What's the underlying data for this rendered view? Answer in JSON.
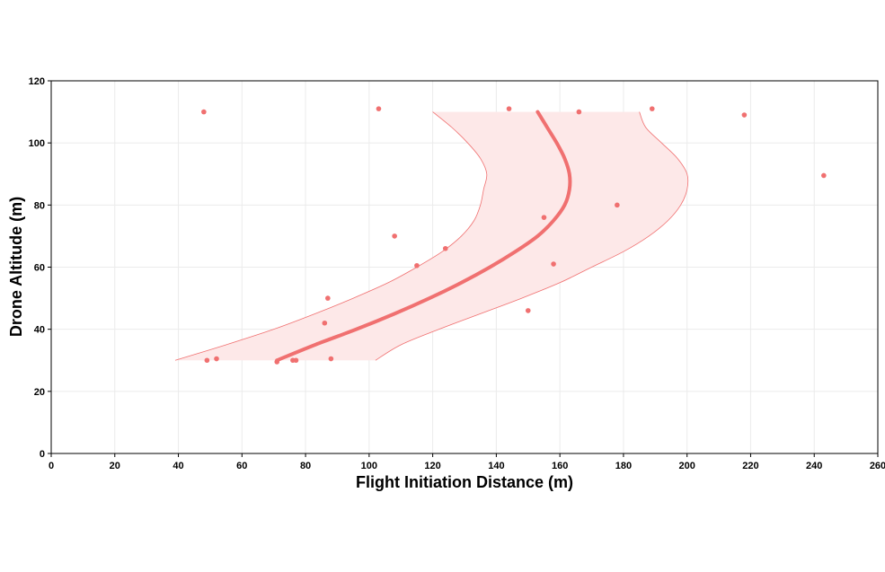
{
  "chart_data": {
    "type": "scatter",
    "xlabel": "Flight Initiation Distance (m)",
    "ylabel": "Drone Altitude (m)",
    "xlim": [
      0,
      260
    ],
    "ylim": [
      0,
      120
    ],
    "xticks": [
      0,
      20,
      40,
      60,
      80,
      100,
      120,
      140,
      160,
      180,
      200,
      220,
      240,
      260
    ],
    "yticks": [
      0,
      20,
      40,
      60,
      80,
      100,
      120
    ],
    "grid": true,
    "colors": {
      "points": "#f07070",
      "band_fill": "#fde8e8",
      "band_edge": "#f07070",
      "fit_line": "#f07070"
    },
    "points": [
      {
        "x": 48,
        "y": 110
      },
      {
        "x": 103,
        "y": 111
      },
      {
        "x": 144,
        "y": 111
      },
      {
        "x": 166,
        "y": 110
      },
      {
        "x": 189,
        "y": 111
      },
      {
        "x": 218,
        "y": 109
      },
      {
        "x": 243,
        "y": 89.5
      },
      {
        "x": 178,
        "y": 80
      },
      {
        "x": 155,
        "y": 76
      },
      {
        "x": 108,
        "y": 70
      },
      {
        "x": 124,
        "y": 66
      },
      {
        "x": 115,
        "y": 60.5
      },
      {
        "x": 158,
        "y": 61
      },
      {
        "x": 87,
        "y": 50
      },
      {
        "x": 150,
        "y": 46
      },
      {
        "x": 86,
        "y": 42
      },
      {
        "x": 49,
        "y": 30
      },
      {
        "x": 52,
        "y": 30.5
      },
      {
        "x": 71,
        "y": 29.5
      },
      {
        "x": 76,
        "y": 30
      },
      {
        "x": 77,
        "y": 30
      },
      {
        "x": 88,
        "y": 30.5
      }
    ],
    "fit": [
      {
        "y": 30,
        "x": 71
      },
      {
        "y": 35,
        "x": 83
      },
      {
        "y": 40,
        "x": 96
      },
      {
        "y": 45,
        "x": 108
      },
      {
        "y": 50,
        "x": 119
      },
      {
        "y": 55,
        "x": 129
      },
      {
        "y": 60,
        "x": 138
      },
      {
        "y": 65,
        "x": 146
      },
      {
        "y": 70,
        "x": 153
      },
      {
        "y": 75,
        "x": 158
      },
      {
        "y": 80,
        "x": 161.5
      },
      {
        "y": 85,
        "x": 163
      },
      {
        "y": 90,
        "x": 163
      },
      {
        "y": 95,
        "x": 161.5
      },
      {
        "y": 100,
        "x": 159
      },
      {
        "y": 105,
        "x": 156
      },
      {
        "y": 110,
        "x": 153
      }
    ],
    "band_lower": [
      {
        "y": 30,
        "x": 39
      },
      {
        "y": 35,
        "x": 55
      },
      {
        "y": 40,
        "x": 70
      },
      {
        "y": 45,
        "x": 83
      },
      {
        "y": 50,
        "x": 95
      },
      {
        "y": 55,
        "x": 106
      },
      {
        "y": 60,
        "x": 115
      },
      {
        "y": 65,
        "x": 123
      },
      {
        "y": 70,
        "x": 129
      },
      {
        "y": 75,
        "x": 133
      },
      {
        "y": 80,
        "x": 135
      },
      {
        "y": 85,
        "x": 136
      },
      {
        "y": 90,
        "x": 137
      },
      {
        "y": 95,
        "x": 135
      },
      {
        "y": 100,
        "x": 131
      },
      {
        "y": 105,
        "x": 126
      },
      {
        "y": 110,
        "x": 120
      }
    ],
    "band_upper": [
      {
        "y": 30,
        "x": 102
      },
      {
        "y": 35,
        "x": 110
      },
      {
        "y": 40,
        "x": 122
      },
      {
        "y": 45,
        "x": 135
      },
      {
        "y": 50,
        "x": 148
      },
      {
        "y": 55,
        "x": 160
      },
      {
        "y": 60,
        "x": 170
      },
      {
        "y": 65,
        "x": 180
      },
      {
        "y": 70,
        "x": 188
      },
      {
        "y": 75,
        "x": 194
      },
      {
        "y": 80,
        "x": 198
      },
      {
        "y": 85,
        "x": 200
      },
      {
        "y": 90,
        "x": 200
      },
      {
        "y": 95,
        "x": 197
      },
      {
        "y": 100,
        "x": 192
      },
      {
        "y": 105,
        "x": 187
      },
      {
        "y": 110,
        "x": 185
      }
    ]
  }
}
